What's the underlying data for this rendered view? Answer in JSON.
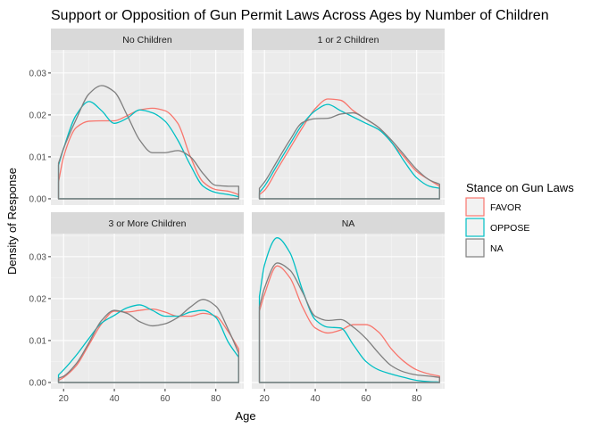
{
  "chart_data": {
    "type": "line",
    "title": "Support or Opposition of Gun Permit Laws Across Ages by Number of Children",
    "xlabel": "Age",
    "ylabel": "Density of Response",
    "xlim": [
      15,
      91
    ],
    "ylim": [
      -0.0015,
      0.0355
    ],
    "x_ticks": [
      20,
      40,
      60,
      80
    ],
    "y_ticks": [
      0.0,
      0.01,
      0.02,
      0.03
    ],
    "x_tick_labels": [
      "20",
      "40",
      "60",
      "80"
    ],
    "y_tick_labels": [
      "0.00",
      "0.01",
      "0.02",
      "0.03"
    ],
    "grid": true,
    "legend": {
      "title": "Stance on Gun Laws",
      "position": "right",
      "entries": [
        {
          "name": "FAVOR",
          "color": "#F8766D"
        },
        {
          "name": "OPPOSE",
          "color": "#00BFC4"
        },
        {
          "name": "NA",
          "color": "#7F7F7F"
        }
      ]
    },
    "panels": [
      {
        "label": "No Children",
        "series": [
          {
            "name": "FAVOR",
            "color": "#F8766D",
            "x": [
              18,
              20,
              25,
              30,
              35,
              40,
              45,
              50,
              55,
              60,
              65,
              70,
              75,
              80,
              85,
              89
            ],
            "y": [
              0.004,
              0.01,
              0.017,
              0.0185,
              0.0186,
              0.0186,
              0.0198,
              0.0212,
              0.0216,
              0.021,
              0.018,
              0.01,
              0.004,
              0.0022,
              0.0018,
              0.001
            ]
          },
          {
            "name": "OPPOSE",
            "color": "#00BFC4",
            "x": [
              18,
              20,
              25,
              30,
              35,
              40,
              45,
              50,
              55,
              60,
              65,
              70,
              75,
              80,
              85,
              89
            ],
            "y": [
              0.008,
              0.012,
              0.02,
              0.0232,
              0.021,
              0.018,
              0.0192,
              0.0212,
              0.0205,
              0.0185,
              0.014,
              0.008,
              0.003,
              0.0015,
              0.001,
              0.0005
            ]
          },
          {
            "name": "NA",
            "color": "#7F7F7F",
            "x": [
              18,
              20,
              25,
              30,
              35,
              40,
              45,
              50,
              55,
              60,
              65,
              70,
              75,
              80,
              85,
              89
            ],
            "y": [
              0.0085,
              0.012,
              0.019,
              0.025,
              0.027,
              0.0255,
              0.02,
              0.014,
              0.011,
              0.011,
              0.0115,
              0.01,
              0.006,
              0.0032,
              0.003,
              0.003
            ]
          }
        ]
      },
      {
        "label": "1 or 2 Children",
        "series": [
          {
            "name": "FAVOR",
            "color": "#F8766D",
            "x": [
              18,
              20,
              25,
              30,
              35,
              40,
              45,
              50,
              55,
              60,
              65,
              70,
              75,
              80,
              85,
              89
            ],
            "y": [
              0.001,
              0.002,
              0.007,
              0.012,
              0.017,
              0.0215,
              0.0238,
              0.0235,
              0.021,
              0.019,
              0.017,
              0.0135,
              0.01,
              0.0065,
              0.0045,
              0.003
            ]
          },
          {
            "name": "OPPOSE",
            "color": "#00BFC4",
            "x": [
              18,
              20,
              25,
              30,
              35,
              40,
              45,
              50,
              55,
              60,
              65,
              70,
              75,
              80,
              85,
              89
            ],
            "y": [
              0.0015,
              0.003,
              0.008,
              0.013,
              0.0178,
              0.021,
              0.0225,
              0.021,
              0.0195,
              0.018,
              0.0165,
              0.0135,
              0.009,
              0.005,
              0.003,
              0.0025
            ]
          },
          {
            "name": "NA",
            "color": "#7F7F7F",
            "x": [
              18,
              20,
              25,
              30,
              35,
              40,
              45,
              50,
              55,
              60,
              65,
              70,
              75,
              80,
              85,
              89
            ],
            "y": [
              0.0025,
              0.004,
              0.009,
              0.014,
              0.0182,
              0.0191,
              0.0192,
              0.0202,
              0.0205,
              0.019,
              0.017,
              0.014,
              0.0105,
              0.007,
              0.0045,
              0.0035
            ]
          }
        ]
      },
      {
        "label": "3 or More Children",
        "series": [
          {
            "name": "FAVOR",
            "color": "#F8766D",
            "x": [
              18,
              20,
              25,
              30,
              35,
              40,
              45,
              50,
              55,
              60,
              65,
              70,
              75,
              80,
              85,
              89
            ],
            "y": [
              0.0005,
              0.0012,
              0.004,
              0.009,
              0.014,
              0.017,
              0.0168,
              0.0172,
              0.0175,
              0.0168,
              0.0158,
              0.0158,
              0.0165,
              0.0158,
              0.012,
              0.008
            ]
          },
          {
            "name": "OPPOSE",
            "color": "#00BFC4",
            "x": [
              18,
              20,
              25,
              30,
              35,
              40,
              45,
              50,
              55,
              60,
              65,
              70,
              75,
              80,
              85,
              89
            ],
            "y": [
              0.0018,
              0.003,
              0.0065,
              0.0105,
              0.0142,
              0.016,
              0.0178,
              0.0185,
              0.0172,
              0.0158,
              0.0158,
              0.0168,
              0.0172,
              0.0155,
              0.0095,
              0.006
            ]
          },
          {
            "name": "NA",
            "color": "#7F7F7F",
            "x": [
              18,
              20,
              25,
              30,
              35,
              40,
              45,
              50,
              55,
              60,
              65,
              70,
              75,
              80,
              85,
              89
            ],
            "y": [
              0.001,
              0.0015,
              0.0045,
              0.0095,
              0.0148,
              0.0172,
              0.0165,
              0.0145,
              0.0135,
              0.014,
              0.0155,
              0.018,
              0.0198,
              0.0182,
              0.0125,
              0.007
            ]
          }
        ]
      },
      {
        "label": "NA",
        "series": [
          {
            "name": "FAVOR",
            "color": "#F8766D",
            "x": [
              18,
              20,
              25,
              30,
              35,
              40,
              45,
              50,
              55,
              60,
              65,
              70,
              75,
              80,
              85,
              89
            ],
            "y": [
              0.017,
              0.021,
              0.0278,
              0.025,
              0.018,
              0.013,
              0.0118,
              0.0125,
              0.0138,
              0.0138,
              0.012,
              0.008,
              0.005,
              0.003,
              0.002,
              0.0015
            ]
          },
          {
            "name": "OPPOSE",
            "color": "#00BFC4",
            "x": [
              18,
              20,
              25,
              30,
              35,
              40,
              45,
              50,
              55,
              60,
              65,
              70,
              75,
              80,
              85,
              89
            ],
            "y": [
              0.0205,
              0.028,
              0.0345,
              0.031,
              0.022,
              0.015,
              0.0132,
              0.013,
              0.009,
              0.005,
              0.003,
              0.002,
              0.0012,
              0.0005,
              0.0002,
              0.0001
            ]
          },
          {
            "name": "NA",
            "color": "#7F7F7F",
            "x": [
              18,
              20,
              25,
              30,
              35,
              40,
              45,
              50,
              55,
              60,
              65,
              70,
              75,
              80,
              85,
              89
            ],
            "y": [
              0.018,
              0.0225,
              0.0285,
              0.0268,
              0.0215,
              0.0158,
              0.0148,
              0.015,
              0.0132,
              0.0105,
              0.007,
              0.004,
              0.0025,
              0.0018,
              0.0015,
              0.0012
            ]
          }
        ]
      }
    ]
  }
}
